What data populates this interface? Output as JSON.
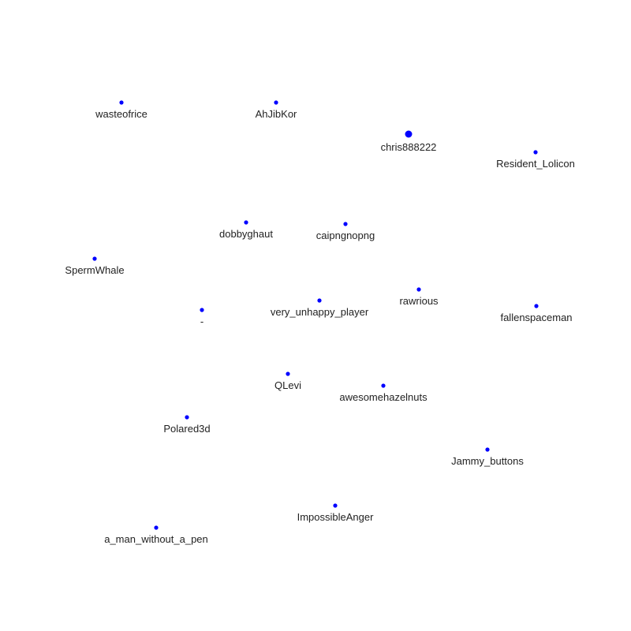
{
  "graph": {
    "node_color": "#0000ff",
    "label_color": "#222222",
    "nodes": [
      {
        "id": "wasteofrice",
        "label": "wasteofrice",
        "emphasis": "normal"
      },
      {
        "id": "AhJibKor",
        "label": "AhJibKor",
        "emphasis": "normal"
      },
      {
        "id": "chris888222",
        "label": "chris888222",
        "emphasis": "large"
      },
      {
        "id": "Resident_Lolicon",
        "label": "Resident_Lolicon",
        "emphasis": "normal"
      },
      {
        "id": "dobbyghaut",
        "label": "dobbyghaut",
        "emphasis": "normal"
      },
      {
        "id": "caipngnopng",
        "label": "caipngnopng",
        "emphasis": "normal"
      },
      {
        "id": "SpermWhale",
        "label": "SpermWhale",
        "emphasis": "normal"
      },
      {
        "id": "dash",
        "label": "-",
        "emphasis": "normal"
      },
      {
        "id": "very_unhappy_player",
        "label": "very_unhappy_player",
        "emphasis": "normal"
      },
      {
        "id": "rawrious",
        "label": "rawrious",
        "emphasis": "normal"
      },
      {
        "id": "fallenspaceman",
        "label": "fallenspaceman",
        "emphasis": "normal"
      },
      {
        "id": "QLevi",
        "label": "QLevi",
        "emphasis": "normal"
      },
      {
        "id": "awesomehazelnuts",
        "label": "awesomehazelnuts",
        "emphasis": "normal"
      },
      {
        "id": "Polared3d",
        "label": "Polared3d",
        "emphasis": "normal"
      },
      {
        "id": "Jammy_buttons",
        "label": "Jammy_buttons",
        "emphasis": "normal"
      },
      {
        "id": "ImpossibleAnger",
        "label": "ImpossibleAnger",
        "emphasis": "normal"
      },
      {
        "id": "a_man_without_a_pen",
        "label": "a_man_without_a_pen",
        "emphasis": "normal"
      }
    ]
  }
}
